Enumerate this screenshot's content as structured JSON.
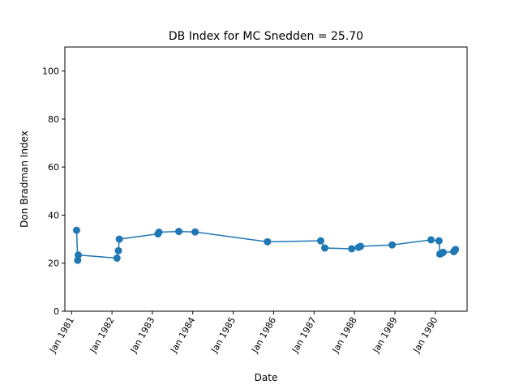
{
  "chart_data": {
    "type": "line",
    "title": "DB Index for MC Snedden = 25.70",
    "xlabel": "Date",
    "ylabel": "Don Bradman Index",
    "xlim": [
      "1980-11-01",
      "1990-10-15"
    ],
    "ylim": [
      0,
      110
    ],
    "x_ticks": [
      {
        "date": "1981-01-01",
        "label": "Jan 1981"
      },
      {
        "date": "1982-01-01",
        "label": "Jan 1982"
      },
      {
        "date": "1983-01-01",
        "label": "Jan 1983"
      },
      {
        "date": "1984-01-01",
        "label": "Jan 1984"
      },
      {
        "date": "1985-01-01",
        "label": "Jan 1985"
      },
      {
        "date": "1986-01-01",
        "label": "Jan 1986"
      },
      {
        "date": "1987-01-01",
        "label": "Jan 1987"
      },
      {
        "date": "1988-01-01",
        "label": "Jan 1988"
      },
      {
        "date": "1989-01-01",
        "label": "Jan 1989"
      },
      {
        "date": "1990-01-01",
        "label": "Jan 1990"
      }
    ],
    "y_ticks": [
      {
        "value": 0,
        "label": "0"
      },
      {
        "value": 20,
        "label": "20"
      },
      {
        "value": 40,
        "label": "40"
      },
      {
        "value": 60,
        "label": "60"
      },
      {
        "value": 80,
        "label": "80"
      },
      {
        "value": 100,
        "label": "100"
      }
    ],
    "grid": false,
    "legend": "none",
    "series": [
      {
        "color": "#1f77b4",
        "marker": "circle",
        "points": [
          {
            "x": "1981-02-15",
            "y": 33.7
          },
          {
            "x": "1981-02-25",
            "y": 21.2
          },
          {
            "x": "1981-03-02",
            "y": 23.4
          },
          {
            "x": "1982-02-15",
            "y": 22.1
          },
          {
            "x": "1982-02-28",
            "y": 25.2
          },
          {
            "x": "1982-03-08",
            "y": 30.0
          },
          {
            "x": "1983-02-20",
            "y": 32.2
          },
          {
            "x": "1983-03-02",
            "y": 32.9
          },
          {
            "x": "1983-08-28",
            "y": 33.2
          },
          {
            "x": "1984-01-22",
            "y": 33.0
          },
          {
            "x": "1985-11-06",
            "y": 28.9
          },
          {
            "x": "1987-03-02",
            "y": 29.3
          },
          {
            "x": "1987-04-08",
            "y": 26.3
          },
          {
            "x": "1987-12-07",
            "y": 26.0
          },
          {
            "x": "1988-02-07",
            "y": 26.6
          },
          {
            "x": "1988-02-25",
            "y": 27.0
          },
          {
            "x": "1988-12-07",
            "y": 27.6
          },
          {
            "x": "1989-11-23",
            "y": 29.7
          },
          {
            "x": "1990-02-03",
            "y": 29.3
          },
          {
            "x": "1990-02-11",
            "y": 23.8
          },
          {
            "x": "1990-02-21",
            "y": 24.0
          },
          {
            "x": "1990-03-03",
            "y": 24.3
          },
          {
            "x": "1990-03-13",
            "y": 24.5
          },
          {
            "x": "1990-06-16",
            "y": 24.8
          },
          {
            "x": "1990-06-24",
            "y": 25.2
          },
          {
            "x": "1990-07-02",
            "y": 25.7
          }
        ]
      }
    ]
  }
}
